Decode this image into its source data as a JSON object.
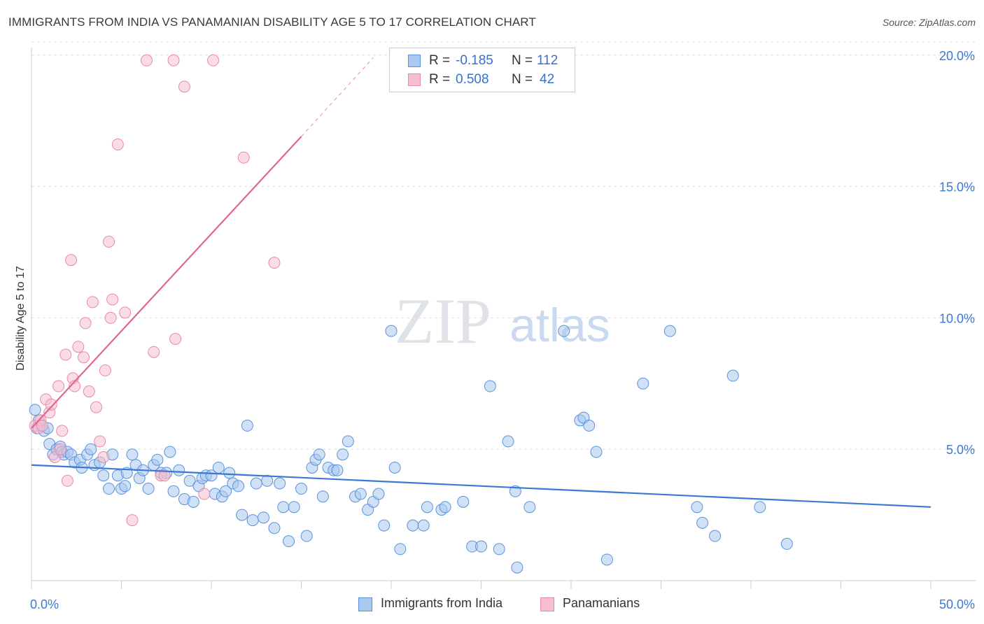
{
  "title": "IMMIGRANTS FROM INDIA VS PANAMANIAN DISABILITY AGE 5 TO 17 CORRELATION CHART",
  "source": "Source: ZipAtlas.com",
  "watermark": {
    "zip": "ZIP",
    "atlas": "atlas"
  },
  "colors": {
    "blue_fill": "#a9c8ef",
    "blue_stroke": "#5b92dd",
    "blue_line": "#3a78d4",
    "pink_fill": "#f6bfd0",
    "pink_stroke": "#e88aa8",
    "pink_line": "#e0678f",
    "tick_label": "#3a78d4",
    "grid": "#dddddd"
  },
  "legend": {
    "r_label": "R =",
    "n_label": "N =",
    "series": [
      {
        "r": "-0.185",
        "n": "112"
      },
      {
        "r": "0.508",
        "n": "42"
      }
    ]
  },
  "chart_data": {
    "type": "scatter",
    "title": "IMMIGRANTS FROM INDIA VS PANAMANIAN DISABILITY AGE 5 TO 17 CORRELATION CHART",
    "xlabel": "",
    "ylabel": "Disability Age 5 to 17",
    "xlim": [
      0,
      50
    ],
    "ylim": [
      0,
      20.5
    ],
    "x_tick_labels": [
      "0.0%",
      "50.0%"
    ],
    "y_ticks": [
      5,
      10,
      15,
      20
    ],
    "y_tick_labels": [
      "5.0%",
      "10.0%",
      "15.0%",
      "20.0%"
    ],
    "grid": "horizontal dashed",
    "legend_position": "bottom-center",
    "series": [
      {
        "name": "Immigrants from India",
        "r": -0.185,
        "n": 112,
        "trend": {
          "x": [
            0,
            50
          ],
          "y": [
            4.4,
            2.8
          ]
        },
        "points": [
          [
            0.2,
            6.5
          ],
          [
            0.3,
            5.8
          ],
          [
            0.4,
            6.1
          ],
          [
            0.5,
            5.9
          ],
          [
            0.7,
            5.7
          ],
          [
            0.9,
            5.8
          ],
          [
            1.0,
            5.2
          ],
          [
            1.2,
            4.8
          ],
          [
            1.4,
            5.0
          ],
          [
            1.6,
            5.1
          ],
          [
            1.7,
            4.9
          ],
          [
            1.8,
            4.8
          ],
          [
            2.0,
            4.9
          ],
          [
            2.2,
            4.8
          ],
          [
            2.4,
            4.5
          ],
          [
            2.7,
            4.6
          ],
          [
            2.8,
            4.3
          ],
          [
            3.1,
            4.8
          ],
          [
            3.3,
            5.0
          ],
          [
            3.5,
            4.4
          ],
          [
            3.8,
            4.5
          ],
          [
            4.0,
            4.0
          ],
          [
            4.3,
            3.5
          ],
          [
            4.5,
            4.8
          ],
          [
            4.8,
            4.0
          ],
          [
            5.0,
            3.5
          ],
          [
            5.2,
            3.6
          ],
          [
            5.3,
            4.1
          ],
          [
            5.6,
            4.8
          ],
          [
            5.8,
            4.4
          ],
          [
            6.0,
            3.9
          ],
          [
            6.2,
            4.2
          ],
          [
            6.5,
            3.5
          ],
          [
            6.8,
            4.4
          ],
          [
            7.0,
            4.6
          ],
          [
            7.2,
            4.1
          ],
          [
            7.5,
            4.1
          ],
          [
            7.7,
            4.9
          ],
          [
            7.9,
            3.4
          ],
          [
            8.2,
            4.2
          ],
          [
            8.5,
            3.1
          ],
          [
            8.8,
            3.8
          ],
          [
            9.0,
            3.0
          ],
          [
            9.3,
            3.6
          ],
          [
            9.5,
            3.9
          ],
          [
            9.7,
            4.0
          ],
          [
            10.0,
            4.0
          ],
          [
            10.2,
            3.3
          ],
          [
            10.4,
            4.3
          ],
          [
            10.6,
            3.2
          ],
          [
            10.8,
            3.4
          ],
          [
            11.0,
            4.1
          ],
          [
            11.2,
            3.7
          ],
          [
            11.5,
            3.6
          ],
          [
            11.7,
            2.5
          ],
          [
            12.0,
            5.9
          ],
          [
            12.3,
            2.3
          ],
          [
            12.5,
            3.7
          ],
          [
            12.9,
            2.4
          ],
          [
            13.1,
            3.8
          ],
          [
            13.5,
            2.0
          ],
          [
            13.8,
            3.7
          ],
          [
            14.0,
            2.8
          ],
          [
            14.3,
            1.5
          ],
          [
            14.6,
            2.8
          ],
          [
            15.0,
            3.5
          ],
          [
            15.3,
            1.7
          ],
          [
            15.6,
            4.3
          ],
          [
            15.8,
            4.6
          ],
          [
            16.0,
            4.8
          ],
          [
            16.2,
            3.2
          ],
          [
            16.5,
            4.3
          ],
          [
            16.8,
            4.2
          ],
          [
            17.0,
            4.2
          ],
          [
            17.3,
            4.8
          ],
          [
            17.6,
            5.3
          ],
          [
            18.0,
            3.2
          ],
          [
            18.3,
            3.3
          ],
          [
            18.7,
            2.7
          ],
          [
            19.0,
            3.0
          ],
          [
            19.3,
            3.3
          ],
          [
            19.6,
            2.1
          ],
          [
            20.0,
            9.5
          ],
          [
            20.2,
            4.3
          ],
          [
            20.5,
            1.2
          ],
          [
            21.2,
            2.1
          ],
          [
            21.8,
            2.1
          ],
          [
            22.0,
            2.8
          ],
          [
            22.8,
            2.7
          ],
          [
            23.0,
            2.8
          ],
          [
            24.0,
            3.0
          ],
          [
            24.5,
            1.3
          ],
          [
            25.0,
            1.3
          ],
          [
            25.5,
            7.4
          ],
          [
            26.0,
            1.2
          ],
          [
            26.5,
            5.3
          ],
          [
            26.9,
            3.4
          ],
          [
            27.0,
            0.5
          ],
          [
            27.7,
            2.8
          ],
          [
            29.6,
            9.5
          ],
          [
            30.5,
            6.1
          ],
          [
            30.7,
            6.2
          ],
          [
            31.0,
            5.9
          ],
          [
            31.4,
            4.9
          ],
          [
            32.0,
            0.8
          ],
          [
            34.0,
            7.5
          ],
          [
            35.5,
            9.5
          ],
          [
            37.0,
            2.8
          ],
          [
            37.3,
            2.2
          ],
          [
            38.0,
            1.7
          ],
          [
            39.0,
            7.8
          ],
          [
            40.5,
            2.8
          ],
          [
            42.0,
            1.4
          ]
        ]
      },
      {
        "name": "Panamanians",
        "r": 0.508,
        "n": 42,
        "trend": {
          "x": [
            0,
            15
          ],
          "y": [
            5.8,
            16.9
          ]
        },
        "trend_extension": {
          "x": [
            15,
            19
          ],
          "y": [
            16.9,
            19.9
          ]
        },
        "points": [
          [
            0.2,
            5.9
          ],
          [
            0.4,
            5.8
          ],
          [
            0.5,
            6.1
          ],
          [
            0.6,
            5.9
          ],
          [
            0.8,
            6.9
          ],
          [
            1.0,
            6.4
          ],
          [
            1.1,
            6.7
          ],
          [
            1.3,
            4.7
          ],
          [
            1.5,
            7.4
          ],
          [
            1.7,
            5.7
          ],
          [
            1.9,
            8.6
          ],
          [
            2.0,
            3.8
          ],
          [
            2.2,
            12.2
          ],
          [
            2.3,
            7.7
          ],
          [
            2.4,
            7.4
          ],
          [
            2.6,
            8.9
          ],
          [
            3.0,
            9.8
          ],
          [
            3.2,
            7.2
          ],
          [
            3.4,
            10.6
          ],
          [
            3.6,
            6.6
          ],
          [
            3.8,
            5.3
          ],
          [
            4.0,
            4.7
          ],
          [
            4.3,
            12.9
          ],
          [
            4.4,
            10.0
          ],
          [
            4.5,
            10.7
          ],
          [
            4.8,
            16.6
          ],
          [
            5.2,
            10.2
          ],
          [
            5.6,
            2.3
          ],
          [
            6.4,
            19.8
          ],
          [
            6.8,
            8.7
          ],
          [
            7.2,
            4.0
          ],
          [
            7.9,
            19.8
          ],
          [
            8.0,
            9.2
          ],
          [
            8.5,
            18.8
          ],
          [
            9.6,
            3.3
          ],
          [
            10.1,
            19.8
          ],
          [
            11.8,
            16.1
          ],
          [
            13.5,
            12.1
          ],
          [
            7.4,
            4.0
          ],
          [
            2.9,
            8.5
          ],
          [
            1.6,
            5.0
          ],
          [
            4.1,
            8.0
          ]
        ]
      }
    ]
  }
}
